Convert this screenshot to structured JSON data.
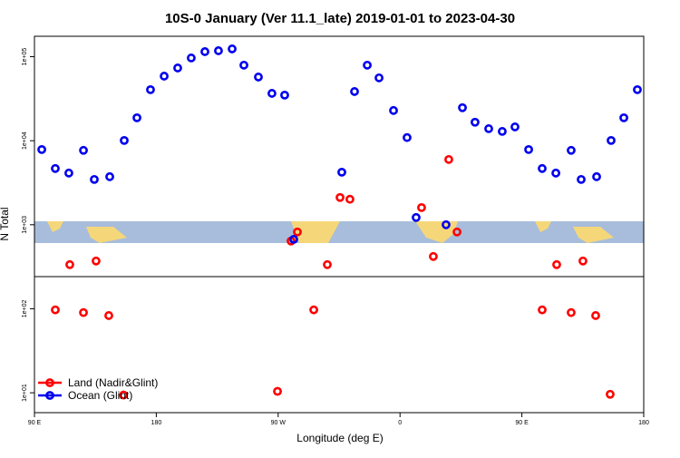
{
  "chart_data": {
    "type": "scatter",
    "title": "10S-0 January (Ver 11.1_late)   2019-01-01 to 2023-04-30",
    "x_label": "Longitude (deg E)",
    "y_label": "N Total",
    "xlim": [
      90,
      540
    ],
    "xticks": [
      {
        "value": 90,
        "label": "90 E"
      },
      {
        "value": 180,
        "label": "180"
      },
      {
        "value": 270,
        "label": "90 W"
      },
      {
        "value": 360,
        "label": "0"
      },
      {
        "value": 450,
        "label": "90 E"
      },
      {
        "value": 540,
        "label": "180"
      }
    ],
    "ylim": [
      5.8,
      175000
    ],
    "log_y": true,
    "yticks": [
      {
        "value": 10,
        "label": "1e+01"
      },
      {
        "value": 100,
        "label": "1e+02"
      },
      {
        "value": 1000,
        "label": "1e+03"
      },
      {
        "value": 10000,
        "label": "1e+04"
      },
      {
        "value": 100000,
        "label": "1e+05"
      }
    ],
    "legend": "bottom-left",
    "series": [
      {
        "name": "Land (Nadir&Glint)",
        "color": "#ff0000",
        "x": [
          105.4,
          116.1,
          126.2,
          135.5,
          144.9,
          155.8,
          269.5,
          279.5,
          284.2,
          296.3,
          306.3,
          315.7,
          323.0,
          375.9,
          384.6,
          396.0,
          402.1,
          465.0,
          475.7,
          486.4,
          495.1,
          504.5,
          515.2
        ],
        "values": [
          97,
          335,
          90,
          370,
          83,
          9.4,
          10.4,
          640,
          820,
          97,
          335,
          2110,
          2010,
          1600,
          419,
          5980,
          820,
          97,
          335,
          90,
          370,
          83,
          9.6
        ]
      },
      {
        "name": "Ocean (Glint)",
        "color": "#0000ee",
        "x": [
          95.4,
          105.4,
          115.4,
          126.2,
          134.2,
          145.6,
          156.3,
          165.7,
          175.7,
          185.8,
          195.8,
          205.8,
          215.9,
          225.9,
          236.0,
          244.7,
          255.4,
          265.4,
          274.8,
          281.5,
          317.0,
          326.4,
          335.8,
          344.5,
          355.2,
          365.2,
          371.9,
          394.0,
          406.1,
          415.4,
          425.5,
          435.5,
          444.9,
          455.0,
          465.0,
          475.1,
          486.4,
          493.8,
          505.2,
          515.9,
          525.3,
          535.3
        ],
        "values": [
          7850,
          4670,
          4120,
          7680,
          3460,
          3730,
          10070,
          18750,
          40500,
          58700,
          73400,
          96600,
          114800,
          117700,
          123800,
          79300,
          57300,
          36600,
          34900,
          671,
          4220,
          38500,
          79300,
          56000,
          22900,
          10900,
          1220,
          1000,
          24700,
          16600,
          13900,
          12900,
          14600,
          7850,
          4670,
          4120,
          7680,
          3460,
          3730,
          10070,
          18750,
          40500
        ]
      }
    ]
  }
}
